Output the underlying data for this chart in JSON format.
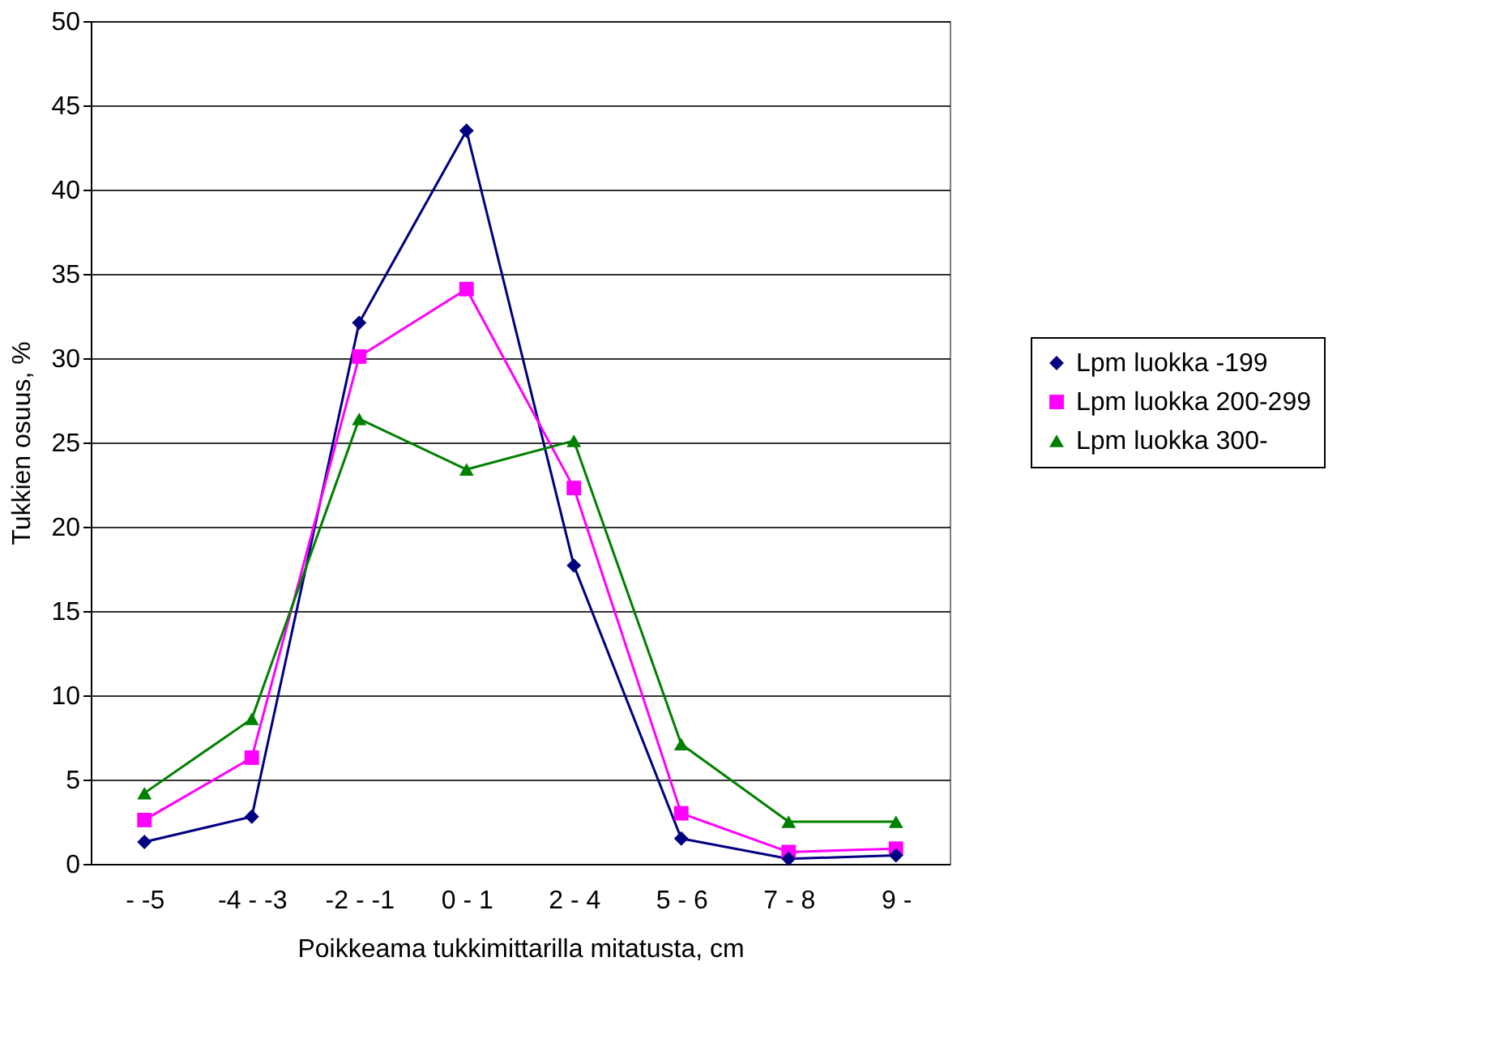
{
  "chart_data": {
    "type": "line",
    "xlabel": "Poikkeama tukkimittarilla mitatusta, cm",
    "ylabel": "Tukkien osuus, %",
    "categories": [
      "- -5",
      "-4 - -3",
      "-2 - -1",
      "0 - 1",
      "2 - 4",
      "5 - 6",
      "7 - 8",
      "9 -"
    ],
    "series": [
      {
        "name": "Lpm luokka -199",
        "color": "#000080",
        "marker": "diamond",
        "values": [
          1.3,
          2.8,
          32.1,
          43.5,
          17.7,
          1.5,
          0.3,
          0.5
        ]
      },
      {
        "name": "Lpm luokka 200-299",
        "color": "#ff00ff",
        "marker": "square",
        "values": [
          2.6,
          6.3,
          30.1,
          34.1,
          22.3,
          3.0,
          0.7,
          0.9
        ]
      },
      {
        "name": "Lpm luokka 300-",
        "color": "#008000",
        "marker": "triangle",
        "values": [
          4.2,
          8.6,
          26.4,
          23.4,
          25.1,
          7.1,
          2.5,
          2.5
        ]
      }
    ],
    "ylim": [
      0,
      50
    ],
    "yticks": [
      0,
      5,
      10,
      15,
      20,
      25,
      30,
      35,
      40,
      45,
      50
    ],
    "grid": "y",
    "legend": "right",
    "line_style": "solid"
  }
}
